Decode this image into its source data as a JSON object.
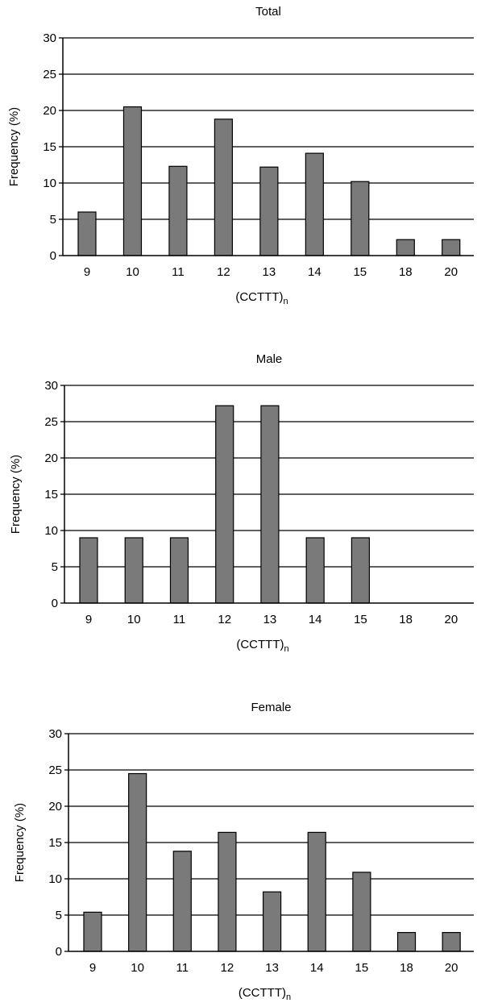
{
  "chart_data": [
    {
      "type": "bar",
      "title": "Total",
      "xlabel": "(CCTTT)",
      "xlabel_subscript": "n",
      "ylabel": "Frequency (%)",
      "ylim": [
        0,
        30
      ],
      "yticks": [
        0,
        5,
        10,
        15,
        20,
        25,
        30
      ],
      "grid": true,
      "categories": [
        "9",
        "10",
        "11",
        "12",
        "13",
        "14",
        "15",
        "18",
        "20"
      ],
      "values": [
        6,
        20.5,
        12.3,
        18.8,
        12.2,
        14.1,
        10.2,
        2.2,
        2.2
      ],
      "bar_color": "#7a7a7a"
    },
    {
      "type": "bar",
      "title": "Male",
      "xlabel": "(CCTTT)",
      "xlabel_subscript": "n",
      "ylabel": "Frequency (%)",
      "ylim": [
        0,
        30
      ],
      "yticks": [
        0,
        5,
        10,
        15,
        20,
        25,
        30
      ],
      "grid": true,
      "categories": [
        "9",
        "10",
        "11",
        "12",
        "13",
        "14",
        "15",
        "18",
        "20"
      ],
      "values": [
        9,
        9,
        9,
        27.2,
        27.2,
        9,
        9,
        0,
        0
      ],
      "bar_color": "#7a7a7a"
    },
    {
      "type": "bar",
      "title": "Female",
      "xlabel": "(CCTTT)",
      "xlabel_subscript": "n",
      "ylabel": "Frequency (%)",
      "ylim": [
        0,
        30
      ],
      "yticks": [
        0,
        5,
        10,
        15,
        20,
        25,
        30
      ],
      "grid": true,
      "categories": [
        "9",
        "10",
        "11",
        "12",
        "13",
        "14",
        "15",
        "18",
        "20"
      ],
      "values": [
        5.4,
        24.5,
        13.8,
        16.4,
        8.2,
        16.4,
        10.9,
        2.6,
        2.6
      ],
      "bar_color": "#7a7a7a"
    }
  ]
}
